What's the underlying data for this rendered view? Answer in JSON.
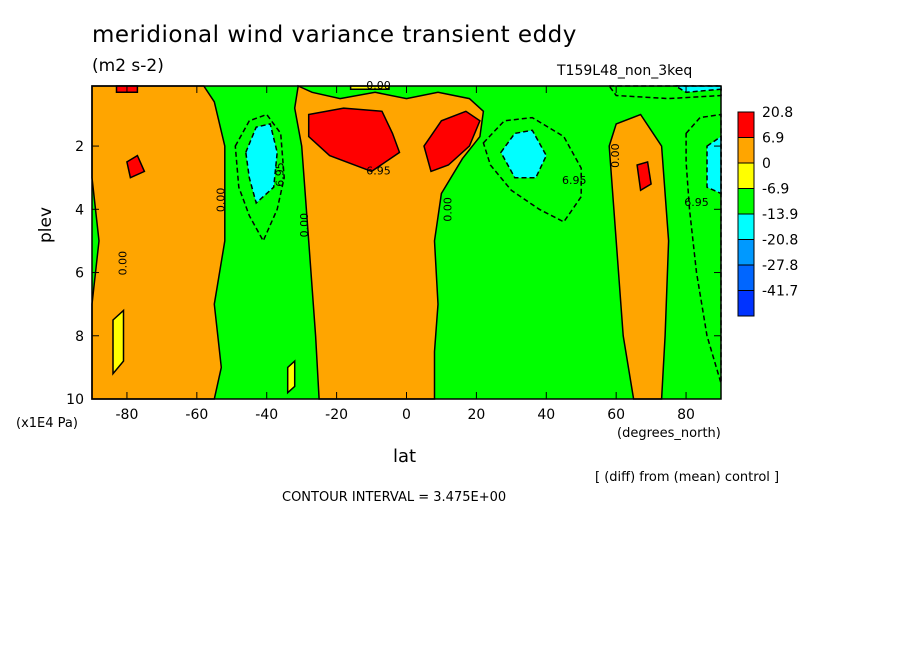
{
  "title": "meridional wind variance transient eddy",
  "units": "(m2 s-2)",
  "run_name": "T159L48_non_3keq",
  "y_label": "plev",
  "y_unit": "(x1E4 Pa)",
  "x_label": "lat",
  "x_unit": "(degrees_north)",
  "diff_note": "[ (diff) from (mean) control ]",
  "contour_interval": "CONTOUR INTERVAL = 3.475E+00",
  "chart_data": {
    "type": "heatmap",
    "x_ticks": [
      "-80",
      "-60",
      "-40",
      "-20",
      "0",
      "20",
      "40",
      "60",
      "80"
    ],
    "x_tick_values": [
      -80,
      -60,
      -40,
      -20,
      0,
      20,
      40,
      60,
      80
    ],
    "y_ticks": [
      "2",
      "4",
      "6",
      "8",
      "10"
    ],
    "y_tick_values": [
      2,
      4,
      6,
      8,
      10
    ],
    "xlim": [
      -90,
      90
    ],
    "ylim": [
      10,
      0.1
    ],
    "legend": {
      "placement": "right",
      "labels": [
        "20.8",
        "6.9",
        "0",
        "-6.9",
        "-13.9",
        "-20.8",
        "-27.8",
        "-41.7"
      ],
      "colors": [
        "#ff0000",
        "#ffa500",
        "#ffff00",
        "#00ff00",
        "#00ffff",
        "#0099ff",
        "#0066ff",
        "#0033ff"
      ]
    },
    "contour_labels": [
      {
        "text": "0.00",
        "x": -8,
        "y": 0.1
      },
      {
        "text": "0.00",
        "x": -81,
        "y": 5.7
      },
      {
        "text": "0.00",
        "x": -53,
        "y": 3.7
      },
      {
        "text": "6.95",
        "x": -36,
        "y": 2.9
      },
      {
        "text": "0.00",
        "x": -29,
        "y": 4.5
      },
      {
        "text": "6.95",
        "x": -8,
        "y": 2.8
      },
      {
        "text": "0.00",
        "x": 12,
        "y": 4.0
      },
      {
        "text": "6.95",
        "x": 48,
        "y": 3.1
      },
      {
        "text": "0.00",
        "x": 60,
        "y": 2.3
      },
      {
        "text": "6.95",
        "x": 83,
        "y": 3.8
      }
    ],
    "regions": [
      {
        "level": 6.9,
        "pts": [
          [
            -90,
            0.1
          ],
          [
            -58,
            0.1
          ],
          [
            -55,
            0.6
          ],
          [
            -52,
            2
          ],
          [
            -52,
            5
          ],
          [
            -55,
            7
          ],
          [
            -53,
            9
          ],
          [
            -55,
            10
          ],
          [
            -90,
            10
          ],
          [
            -90,
            7
          ],
          [
            -88,
            5
          ],
          [
            -90,
            3
          ]
        ]
      },
      {
        "level": 6.9,
        "pts": [
          [
            -31,
            0.1
          ],
          [
            -27,
            0.3
          ],
          [
            -19,
            0.5
          ],
          [
            -9,
            0.3
          ],
          [
            0,
            0.5
          ],
          [
            9,
            0.3
          ],
          [
            18,
            0.5
          ],
          [
            22,
            0.9
          ],
          [
            21,
            1.7
          ],
          [
            16,
            2.4
          ],
          [
            10,
            3.5
          ],
          [
            8,
            5
          ],
          [
            9,
            7
          ],
          [
            8,
            8.5
          ],
          [
            8,
            10
          ],
          [
            -25,
            10
          ],
          [
            -26,
            8
          ],
          [
            -28,
            5
          ],
          [
            -30,
            2
          ],
          [
            -32,
            0.8
          ]
        ]
      },
      {
        "level": 6.9,
        "pts": [
          [
            60,
            1.3
          ],
          [
            67,
            1.0
          ],
          [
            73,
            2
          ],
          [
            75,
            5
          ],
          [
            74,
            8
          ],
          [
            73,
            10
          ],
          [
            65,
            10
          ],
          [
            62,
            8
          ],
          [
            60,
            5
          ],
          [
            58,
            2
          ]
        ]
      },
      {
        "level": 20.8,
        "pts": [
          [
            -28,
            1.0
          ],
          [
            -18,
            0.8
          ],
          [
            -7,
            0.9
          ],
          [
            -4,
            1.6
          ],
          [
            -2,
            2.2
          ],
          [
            -10,
            2.8
          ],
          [
            -22,
            2.3
          ],
          [
            -28,
            1.7
          ]
        ]
      },
      {
        "level": 20.8,
        "pts": [
          [
            5,
            2.0
          ],
          [
            10,
            1.2
          ],
          [
            17,
            0.9
          ],
          [
            21,
            1.2
          ],
          [
            18,
            2.0
          ],
          [
            12,
            2.6
          ],
          [
            7,
            2.8
          ]
        ]
      },
      {
        "level": 20.8,
        "pts": [
          [
            -83,
            0.1
          ],
          [
            -77,
            0.1
          ],
          [
            -77,
            0.3
          ],
          [
            -83,
            0.3
          ]
        ]
      },
      {
        "level": 20.8,
        "pts": [
          [
            -80,
            2.5
          ],
          [
            -77,
            2.3
          ],
          [
            -75,
            2.8
          ],
          [
            -79,
            3.0
          ]
        ]
      },
      {
        "level": 20.8,
        "pts": [
          [
            66,
            2.6
          ],
          [
            69,
            2.5
          ],
          [
            70,
            3.2
          ],
          [
            67,
            3.4
          ]
        ]
      },
      {
        "level": -6.9,
        "pts": [
          [
            -49,
            2
          ],
          [
            -45,
            1.2
          ],
          [
            -40,
            1.0
          ],
          [
            -36,
            1.6
          ],
          [
            -35,
            3.0
          ],
          [
            -37,
            4.0
          ],
          [
            -41,
            5.0
          ],
          [
            -45,
            4.2
          ],
          [
            -48,
            3.3
          ]
        ]
      },
      {
        "level": -6.9,
        "pts": [
          [
            22,
            1.9
          ],
          [
            28,
            1.2
          ],
          [
            36,
            1.1
          ],
          [
            45,
            1.7
          ],
          [
            50,
            2.7
          ],
          [
            50,
            3.6
          ],
          [
            45,
            4.4
          ],
          [
            38,
            4.0
          ],
          [
            30,
            3.4
          ],
          [
            24,
            2.6
          ]
        ]
      },
      {
        "level": -6.9,
        "pts": [
          [
            80,
            1.6
          ],
          [
            84,
            1.1
          ],
          [
            90,
            1.0
          ],
          [
            90,
            9.5
          ],
          [
            86,
            8.0
          ],
          [
            83,
            6.0
          ],
          [
            81,
            4.0
          ],
          [
            80,
            2.5
          ]
        ]
      },
      {
        "level": -6.9,
        "pts": [
          [
            58,
            0.1
          ],
          [
            90,
            0.1
          ],
          [
            90,
            0.4
          ],
          [
            75,
            0.5
          ],
          [
            60,
            0.4
          ]
        ]
      },
      {
        "level": -13.9,
        "pts": [
          [
            -46,
            2.2
          ],
          [
            -43,
            1.4
          ],
          [
            -39,
            1.3
          ],
          [
            -37,
            2.2
          ],
          [
            -38,
            3.3
          ],
          [
            -43,
            3.8
          ],
          [
            -45,
            3.0
          ]
        ]
      },
      {
        "level": -13.9,
        "pts": [
          [
            27,
            2.2
          ],
          [
            31,
            1.6
          ],
          [
            36,
            1.5
          ],
          [
            40,
            2.3
          ],
          [
            37,
            3.0
          ],
          [
            31,
            3.0
          ]
        ]
      },
      {
        "level": -13.9,
        "pts": [
          [
            86,
            2.0
          ],
          [
            90,
            1.7
          ],
          [
            90,
            3.5
          ],
          [
            86,
            3.3
          ]
        ]
      },
      {
        "level": -13.9,
        "pts": [
          [
            77,
            0.1
          ],
          [
            90,
            0.1
          ],
          [
            90,
            0.2
          ],
          [
            80,
            0.3
          ]
        ]
      },
      {
        "level": 0,
        "pts": [
          [
            -16,
            0.1
          ],
          [
            -5,
            0.1
          ],
          [
            -5,
            0.2
          ],
          [
            -16,
            0.2
          ]
        ]
      },
      {
        "level": 0,
        "pts": [
          [
            -84,
            7.5
          ],
          [
            -81,
            7.2
          ],
          [
            -81,
            8.8
          ],
          [
            -84,
            9.2
          ]
        ]
      },
      {
        "level": 0,
        "pts": [
          [
            -34,
            9.0
          ],
          [
            -32,
            8.8
          ],
          [
            -32,
            9.6
          ],
          [
            -34,
            9.8
          ]
        ]
      }
    ]
  }
}
